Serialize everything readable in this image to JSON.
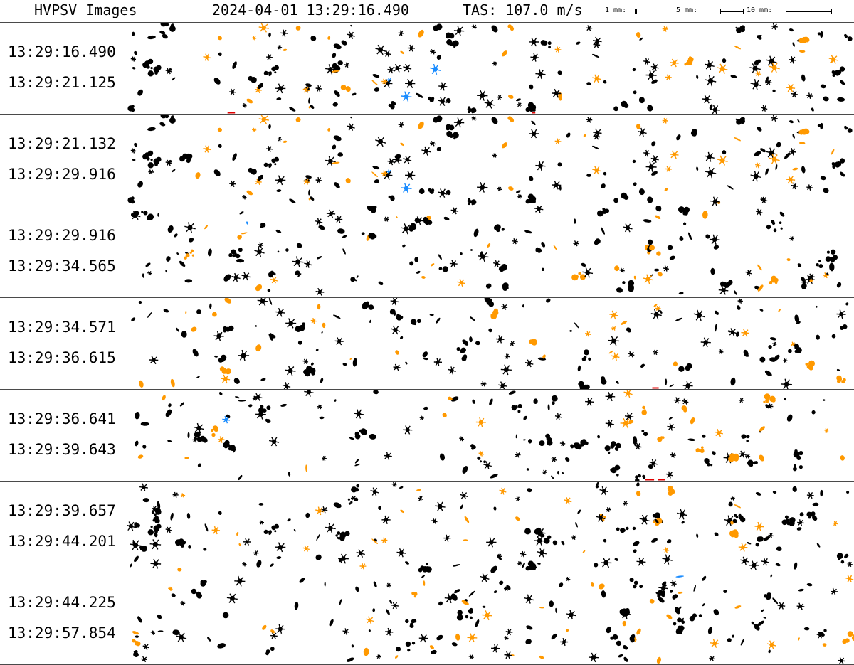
{
  "header": {
    "title": "HVPSV Images",
    "datetime": "2024-04-01_13:29:16.490",
    "tas": "TAS: 107.0 m/s",
    "scales": [
      {
        "label": "1 mm:"
      },
      {
        "label": "5 mm:"
      },
      {
        "label": "10 mm:"
      }
    ]
  },
  "colors": {
    "particle_primary": "#000000",
    "particle_secondary": "#ff9900",
    "particle_edge": "#e00000",
    "particle_rare": "#1a8cff",
    "divider": "#4a4a4a"
  },
  "strips": [
    {
      "start": "13:29:16.490",
      "end": "13:29:21.125"
    },
    {
      "start": "13:29:21.132",
      "end": "13:29:29.916"
    },
    {
      "start": "13:29:29.916",
      "end": "13:29:34.565"
    },
    {
      "start": "13:29:34.571",
      "end": "13:29:36.615"
    },
    {
      "start": "13:29:36.641",
      "end": "13:29:39.643"
    },
    {
      "start": "13:29:39.657",
      "end": "13:29:44.201"
    },
    {
      "start": "13:29:44.225",
      "end": "13:29:57.854"
    }
  ]
}
